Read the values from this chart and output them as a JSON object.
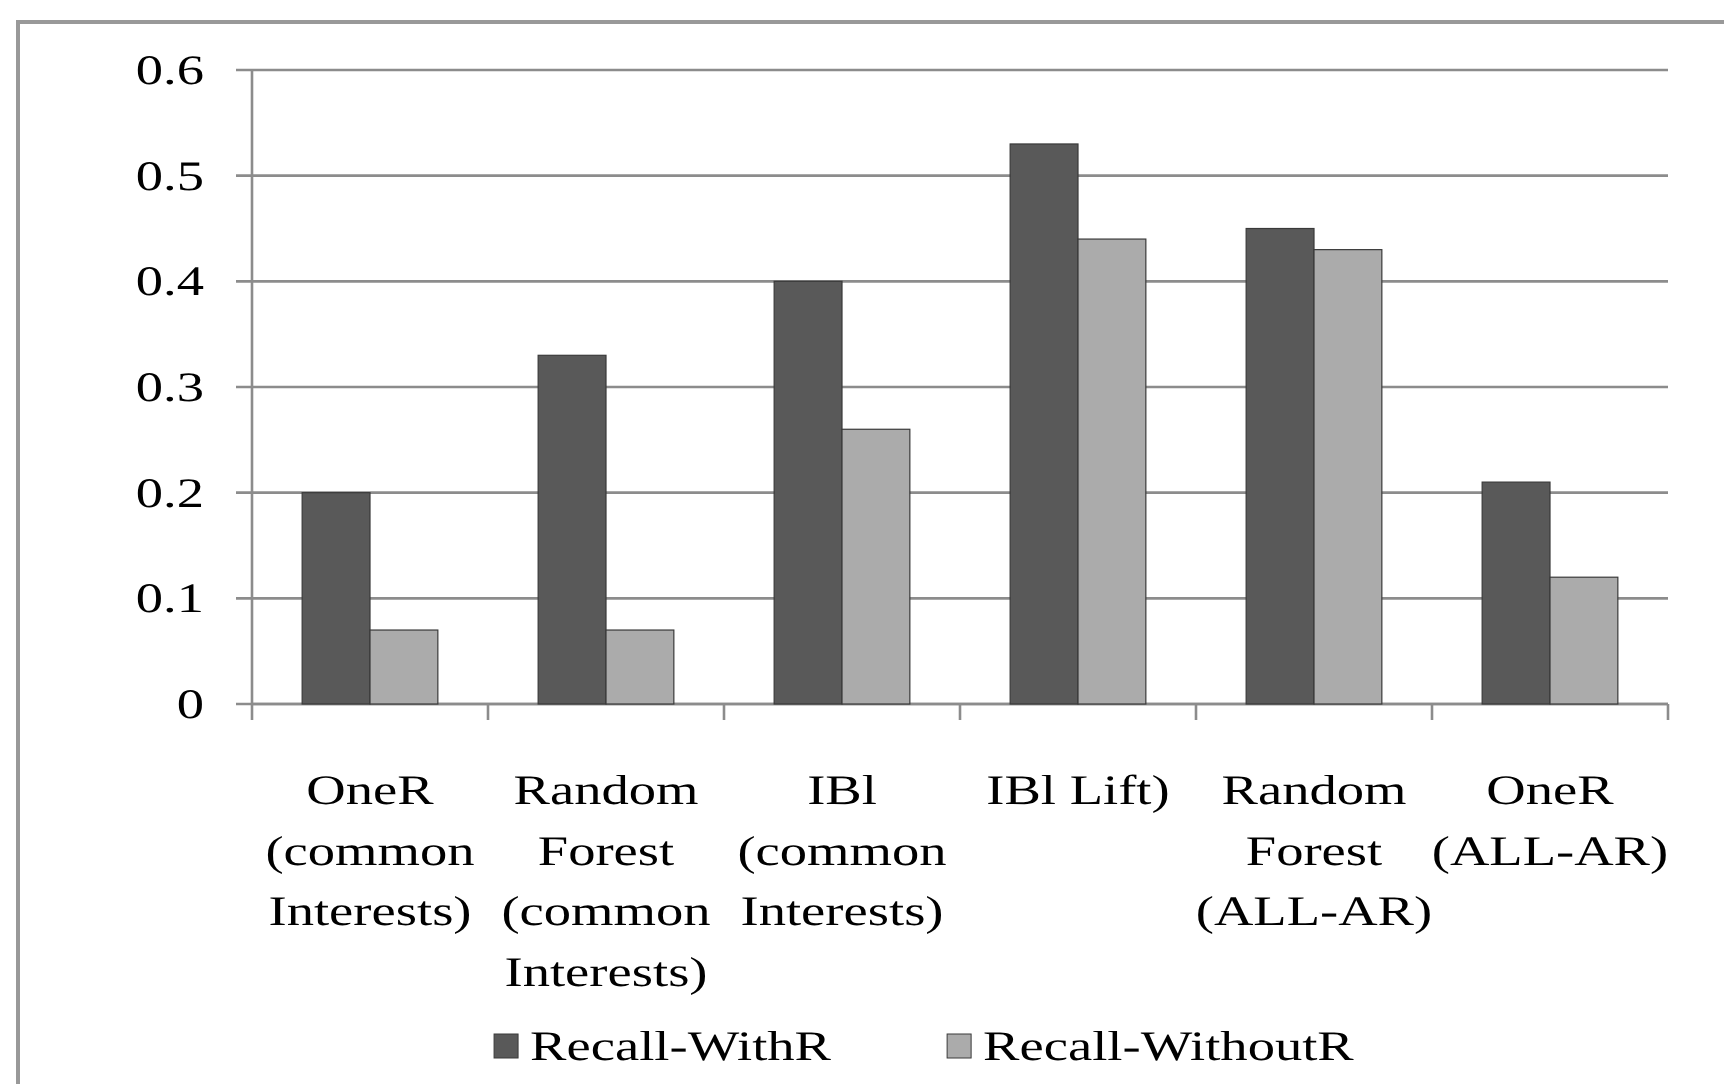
{
  "chart_data": {
    "type": "bar",
    "categories": [
      "OneR (common Interests)",
      "Random Forest (common Interests)",
      "IBl (common Interests)",
      "IBl Lift)",
      "Random Forest (ALL-AR)",
      "OneR (ALL-AR)"
    ],
    "series": [
      {
        "name": "Recall-WithR",
        "color": "#595959",
        "values": [
          0.2,
          0.33,
          0.4,
          0.53,
          0.45,
          0.21
        ]
      },
      {
        "name": "Recall-WithoutR",
        "color": "#ababab",
        "values": [
          0.07,
          0.07,
          0.26,
          0.44,
          0.43,
          0.12
        ]
      }
    ],
    "ylim": [
      0,
      0.6
    ],
    "yticks": [
      0,
      0.1,
      0.2,
      0.3,
      0.4,
      0.5,
      0.6
    ],
    "grid": "y",
    "legend": "bottom"
  }
}
